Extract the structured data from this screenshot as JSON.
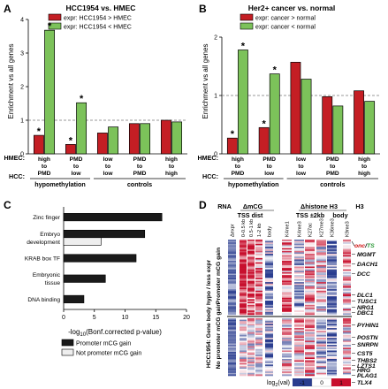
{
  "colors": {
    "red": "#c41e24",
    "green": "#7cc25a",
    "dark_bar": "#1a1a1a",
    "light_bar": "#eeeeee",
    "heat_blue": "#2a3d8f",
    "heat_white": "#ffffff",
    "heat_red": "#c8102e",
    "green_gene": "#2e9a3a",
    "red_gene": "#d01010"
  },
  "panels": {
    "a": {
      "letter": "A"
    },
    "b": {
      "letter": "B"
    },
    "c": {
      "letter": "C"
    },
    "d": {
      "letter": "D"
    }
  },
  "chart_data": [
    {
      "type": "bar",
      "panel": "A",
      "title": "HCC1954 vs. HMEC",
      "ylabel": "Enrichment vs all genes",
      "ylim": [
        0,
        4
      ],
      "yticks": [
        0,
        1,
        2,
        3,
        4
      ],
      "reference_line": 1,
      "row_labels": [
        "HMEC:",
        "HCC:"
      ],
      "categories": [
        {
          "top": "high",
          "mid": "to",
          "bottom": "PMD"
        },
        {
          "top": "PMD",
          "mid": "to",
          "bottom": "low"
        },
        {
          "top": "low",
          "mid": "to",
          "bottom": "low"
        },
        {
          "top": "PMD",
          "mid": "to",
          "bottom": "PMD"
        },
        {
          "top": "high",
          "mid": "to",
          "bottom": "high"
        }
      ],
      "groups": [
        {
          "label": "hypomethylation",
          "span": [
            0,
            1
          ]
        },
        {
          "label": "controls",
          "span": [
            2,
            4
          ]
        }
      ],
      "series": [
        {
          "name": "expr: HCC1954 > HMEC",
          "color": "red",
          "values": [
            0.55,
            0.28,
            0.62,
            0.9,
            1.0
          ]
        },
        {
          "name": "expr: HCC1954 < HMEC",
          "color": "green",
          "values": [
            3.68,
            1.52,
            0.8,
            0.9,
            0.95
          ]
        }
      ],
      "stars": [
        {
          "series": 0,
          "index": 0,
          "text": "*"
        },
        {
          "series": 1,
          "index": 0,
          "text": "*"
        },
        {
          "series": 0,
          "index": 1,
          "text": "*"
        },
        {
          "series": 1,
          "index": 1,
          "text": "*"
        }
      ]
    },
    {
      "type": "bar",
      "panel": "B",
      "title": "Her2+ cancer vs. normal",
      "ylabel": "Enrichment vs all genes",
      "ylim": [
        0,
        2
      ],
      "yticks": [
        0,
        1,
        2
      ],
      "reference_line": 1,
      "row_labels": [
        "HMEC:",
        "HCC:"
      ],
      "categories": [
        {
          "top": "high",
          "mid": "to",
          "bottom": "PMD"
        },
        {
          "top": "PMD",
          "mid": "to",
          "bottom": "low"
        },
        {
          "top": "low",
          "mid": "to",
          "bottom": "low"
        },
        {
          "top": "PMD",
          "mid": "to",
          "bottom": "PMD"
        },
        {
          "top": "high",
          "mid": "to",
          "bottom": "high"
        }
      ],
      "groups": [
        {
          "label": "hypomethylation",
          "span": [
            0,
            1
          ]
        },
        {
          "label": "controls",
          "span": [
            2,
            4
          ]
        }
      ],
      "series": [
        {
          "name": "expr: cancer > normal",
          "color": "red",
          "values": [
            0.27,
            0.45,
            1.57,
            0.98,
            1.08
          ]
        },
        {
          "name": "expr: cancer < normal",
          "color": "green",
          "values": [
            1.78,
            1.37,
            1.28,
            0.82,
            0.9
          ]
        }
      ],
      "stars": [
        {
          "series": 0,
          "index": 0,
          "text": "*"
        },
        {
          "series": 1,
          "index": 0,
          "text": "*"
        },
        {
          "series": 0,
          "index": 1,
          "text": "*"
        },
        {
          "series": 1,
          "index": 1,
          "text": "*"
        }
      ]
    },
    {
      "type": "bar",
      "orientation": "horizontal",
      "panel": "C",
      "xlabel": "-log10(Bonf.corrected p-value)",
      "xlim": [
        0,
        20
      ],
      "xticks": [
        0,
        5,
        10,
        15,
        20
      ],
      "categories": [
        "Zinc finger",
        "Embryo development",
        "KRAB box TF",
        "Embryonic tissue",
        "DNA binding"
      ],
      "category_lines": [
        [
          "Zinc finger"
        ],
        [
          "Embryo",
          "development"
        ],
        [
          "KRAB box TF"
        ],
        [
          "Embryonic",
          "tissue"
        ],
        [
          "DNA binding"
        ]
      ],
      "series": [
        {
          "name": "Promoter mCG gain",
          "color": "dark_bar",
          "values": [
            16,
            13.2,
            11.8,
            6.8,
            3.3
          ]
        },
        {
          "name": "Not promoter mCG gain",
          "color": "light_bar",
          "values": [
            null,
            6.1,
            null,
            null,
            null
          ]
        }
      ]
    },
    {
      "type": "heatmap",
      "panel": "D",
      "scale_label": "log2(val)",
      "scale_ticks": [
        "-1",
        "0",
        "1"
      ],
      "group_headers": [
        {
          "label": "RNA"
        },
        {
          "label": "ΔmCG"
        },
        {
          "label": "Δhistone H3"
        },
        {
          "label": "H3"
        }
      ],
      "sub_headers": [
        {
          "label": "TSS dist"
        },
        {
          "label": "TSS ±2kb"
        },
        {
          "label": "body"
        }
      ],
      "columns": [
        "Δexpr",
        "0-0.5 kb",
        "0.5-1 kb",
        "1-2 kb",
        "body",
        "K4me1",
        "K4me3",
        "K27ac",
        "K27me3",
        "K36me3",
        "K9me3"
      ],
      "side_label": "HCC1954: Gene body hypo / less expr",
      "row_groups": [
        "Promoter mCG gain",
        "No promoter mCG gain"
      ],
      "legend_note": {
        "onc": "onc",
        "sep": "/",
        "ts": "TS"
      },
      "genes_top": [
        {
          "name": "MGMT",
          "color": "green_gene"
        },
        {
          "name": "DACH1",
          "color": "green_gene"
        },
        {
          "name": "DCC",
          "color": "green_gene"
        },
        {
          "name": "DLC1",
          "color": "green_gene"
        },
        {
          "name": "TUSC1",
          "color": "green_gene"
        },
        {
          "name": "NRG1",
          "color": "red_gene"
        },
        {
          "name": "DBC1",
          "color": "green_gene"
        }
      ],
      "genes_bottom": [
        {
          "name": "PYHIN1",
          "color": "green_gene"
        },
        {
          "name": "POSTN",
          "color": "green_gene"
        },
        {
          "name": "SNRPN",
          "color": "green_gene"
        },
        {
          "name": "CST5",
          "color": "green_gene"
        },
        {
          "name": "THBS2",
          "color": "green_gene"
        },
        {
          "name": "LZTS1",
          "color": "green_gene"
        },
        {
          "name": "HRG",
          "color": "green_gene"
        },
        {
          "name": "PLAG1",
          "color": "red_gene"
        },
        {
          "name": "TLX4",
          "color": "red_gene"
        }
      ]
    }
  ]
}
